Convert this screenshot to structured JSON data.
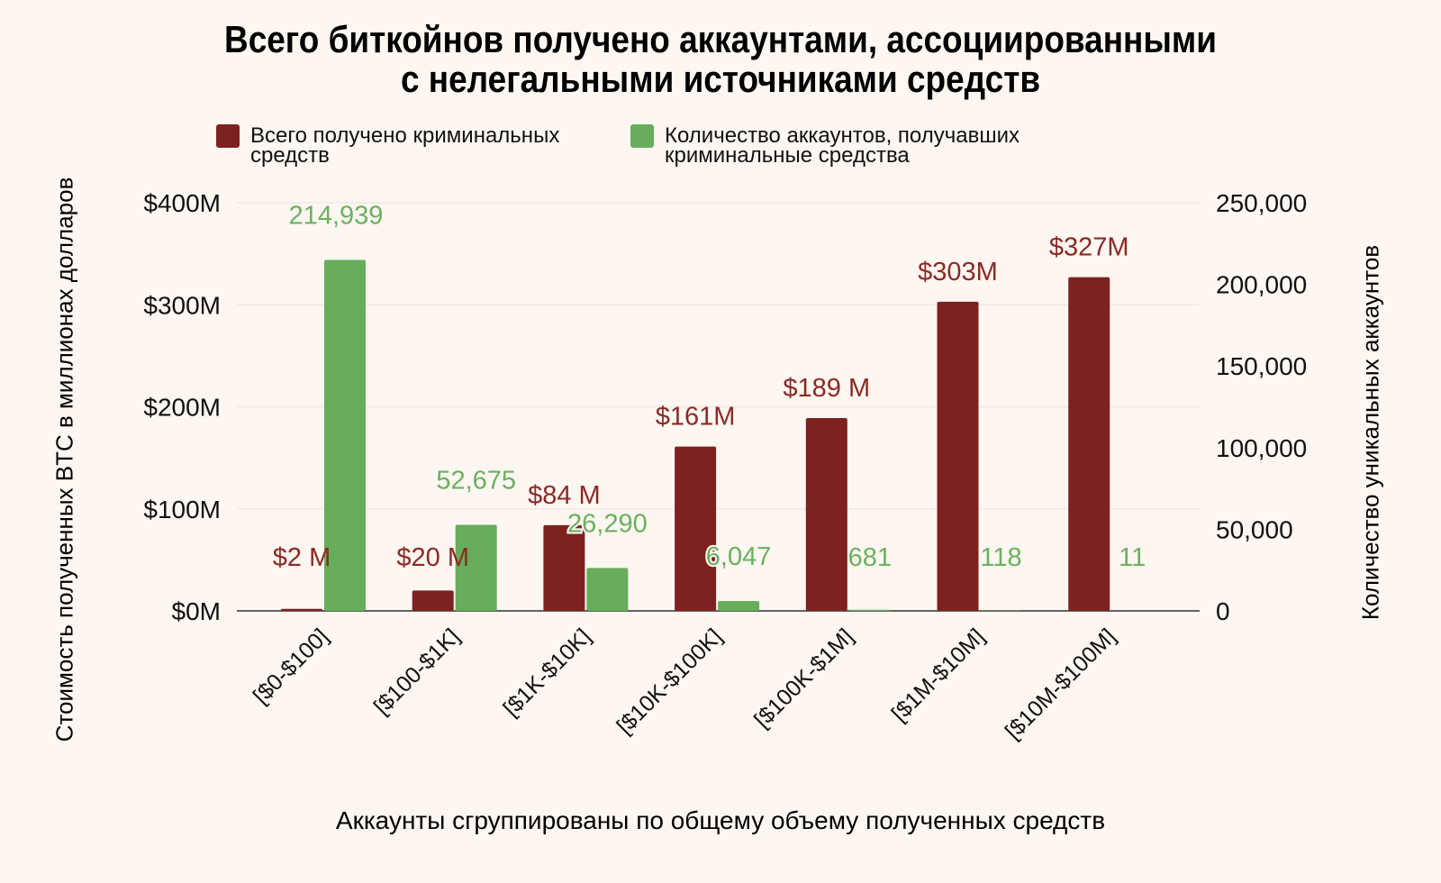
{
  "chart_data": {
    "type": "bar",
    "title": "Всего биткойнов получено аккаунтами, ассоциированными с нелегальными источниками средств",
    "title_lines": [
      "Всего биткойнов получено аккаунтами, ассоциированными",
      "с нелегальными источниками средств"
    ],
    "xlabel": "Аккаунты сгруппированы по общему объему полученных средств",
    "ylabel": "Стоимость полученных BTC в миллионах долларов",
    "y2label": "Количество уникальных аккаунтов",
    "categories": [
      "[$0-$100]",
      "[$100-$1K]",
      "[$1K-$10K]",
      "[$10K-$100K]",
      "[$100K-$1M]",
      "[$1M-$10M]",
      "[$10M-$100M]"
    ],
    "series": [
      {
        "name": "Всего получено криминальных средств",
        "legend_lines": [
          "Всего получено криминальных",
          "средств"
        ],
        "axis": "left",
        "color": "#7d2220",
        "label_color": "#8b2a26",
        "values": [
          2,
          20,
          84,
          161,
          189,
          303,
          327
        ],
        "labels": [
          "$2 M",
          "$20 M",
          "$84 M",
          "$161M",
          "$189 M",
          "$303M",
          "$327M"
        ]
      },
      {
        "name": "Количество аккаунтов, получавших криминальные средства",
        "legend_lines": [
          "Количество аккаунтов, получавших",
          "криминальные средства"
        ],
        "axis": "right",
        "color": "#67ad5b",
        "label_color": "#6ab15f",
        "values": [
          214939,
          52675,
          26290,
          6047,
          681,
          118,
          11
        ],
        "labels": [
          "214,939",
          "52,675",
          "26,290",
          "6,047",
          "681",
          "118",
          "11"
        ]
      }
    ],
    "ylim": [
      0,
      400
    ],
    "y2lim": [
      0,
      250000
    ],
    "yticks": [
      "$0M",
      "$100M",
      "$200M",
      "$300M",
      "$400M"
    ],
    "y2ticks": [
      "0",
      "50,000",
      "100,000",
      "150,000",
      "200,000",
      "250,000"
    ],
    "legend_position": "top",
    "grid": true
  }
}
